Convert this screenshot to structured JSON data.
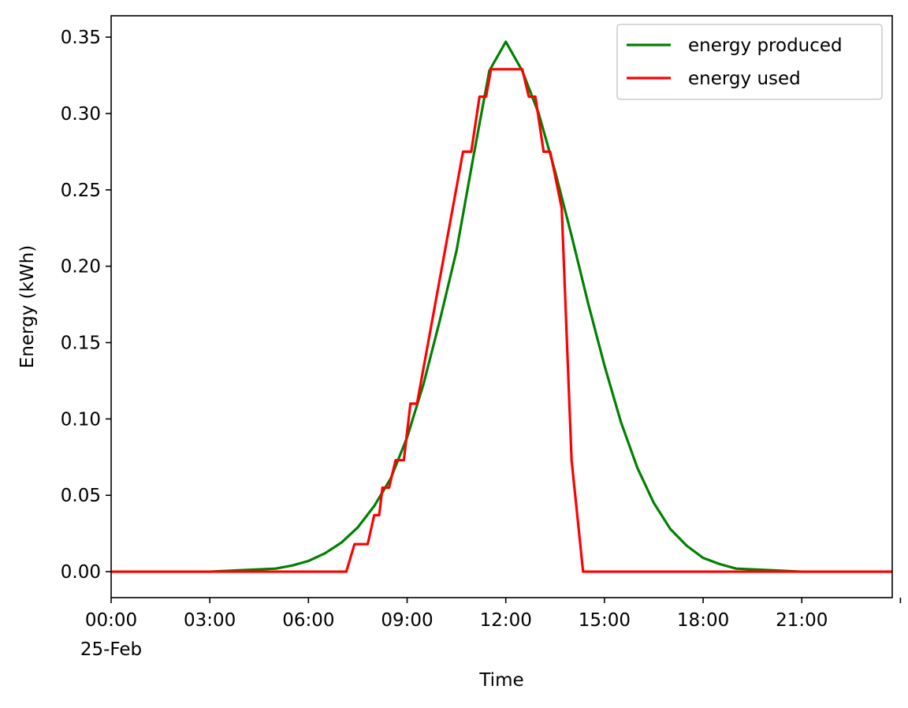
{
  "chart_data": {
    "type": "line",
    "title": "",
    "xlabel": "Time",
    "ylabel": "Energy (kWh)",
    "xlim": [
      "00:00",
      "23:45"
    ],
    "ylim": [
      -0.017,
      0.364
    ],
    "x_ticks": [
      {
        "time": "00:00",
        "label": "00:00",
        "sublabel": "25-Feb"
      },
      {
        "time": "03:00",
        "label": "03:00"
      },
      {
        "time": "06:00",
        "label": "06:00"
      },
      {
        "time": "09:00",
        "label": "09:00"
      },
      {
        "time": "12:00",
        "label": "12:00"
      },
      {
        "time": "15:00",
        "label": "15:00"
      },
      {
        "time": "18:00",
        "label": "18:00"
      },
      {
        "time": "21:00",
        "label": "21:00"
      }
    ],
    "y_ticks": [
      {
        "value": 0.0,
        "label": "0.00"
      },
      {
        "value": 0.05,
        "label": "0.05"
      },
      {
        "value": 0.1,
        "label": "0.10"
      },
      {
        "value": 0.15,
        "label": "0.15"
      },
      {
        "value": 0.2,
        "label": "0.20"
      },
      {
        "value": 0.25,
        "label": "0.25"
      },
      {
        "value": 0.3,
        "label": "0.30"
      },
      {
        "value": 0.35,
        "label": "0.35"
      }
    ],
    "grid": false,
    "legend_position": "top-right",
    "series": [
      {
        "name": "energy produced",
        "color": "#008000",
        "points": [
          [
            "00:00",
            0.0
          ],
          [
            "03:00",
            0.0
          ],
          [
            "04:00",
            0.001
          ],
          [
            "05:00",
            0.002
          ],
          [
            "05:30",
            0.004
          ],
          [
            "06:00",
            0.007
          ],
          [
            "06:30",
            0.012
          ],
          [
            "07:00",
            0.019
          ],
          [
            "07:30",
            0.029
          ],
          [
            "08:00",
            0.043
          ],
          [
            "08:30",
            0.061
          ],
          [
            "09:00",
            0.088
          ],
          [
            "09:30",
            0.123
          ],
          [
            "10:00",
            0.165
          ],
          [
            "10:30",
            0.21
          ],
          [
            "11:00",
            0.27
          ],
          [
            "11:30",
            0.328
          ],
          [
            "12:00",
            0.347
          ],
          [
            "12:30",
            0.328
          ],
          [
            "13:00",
            0.3
          ],
          [
            "13:30",
            0.262
          ],
          [
            "14:00",
            0.22
          ],
          [
            "14:30",
            0.176
          ],
          [
            "15:00",
            0.135
          ],
          [
            "15:30",
            0.098
          ],
          [
            "16:00",
            0.068
          ],
          [
            "16:30",
            0.045
          ],
          [
            "17:00",
            0.028
          ],
          [
            "17:30",
            0.017
          ],
          [
            "18:00",
            0.009
          ],
          [
            "18:30",
            0.005
          ],
          [
            "19:00",
            0.002
          ],
          [
            "20:00",
            0.001
          ],
          [
            "21:00",
            0.0
          ],
          [
            "23:45",
            0.0
          ]
        ]
      },
      {
        "name": "energy used",
        "color": "#ff0000",
        "points": [
          [
            "00:00",
            0.0
          ],
          [
            "07:09",
            0.0
          ],
          [
            "07:24",
            0.018
          ],
          [
            "07:48",
            0.018
          ],
          [
            "08:00",
            0.037
          ],
          [
            "08:09",
            0.037
          ],
          [
            "08:15",
            0.055
          ],
          [
            "08:27",
            0.055
          ],
          [
            "08:39",
            0.073
          ],
          [
            "08:54",
            0.073
          ],
          [
            "09:06",
            0.11
          ],
          [
            "09:18",
            0.11
          ],
          [
            "10:42",
            0.275
          ],
          [
            "10:57",
            0.275
          ],
          [
            "11:12",
            0.311
          ],
          [
            "11:24",
            0.311
          ],
          [
            "11:33",
            0.329
          ],
          [
            "12:30",
            0.329
          ],
          [
            "12:42",
            0.311
          ],
          [
            "12:54",
            0.311
          ],
          [
            "13:09",
            0.275
          ],
          [
            "13:21",
            0.275
          ],
          [
            "13:42",
            0.238
          ],
          [
            "14:00",
            0.073
          ],
          [
            "14:21",
            0.0
          ],
          [
            "23:45",
            0.0
          ]
        ]
      }
    ]
  }
}
